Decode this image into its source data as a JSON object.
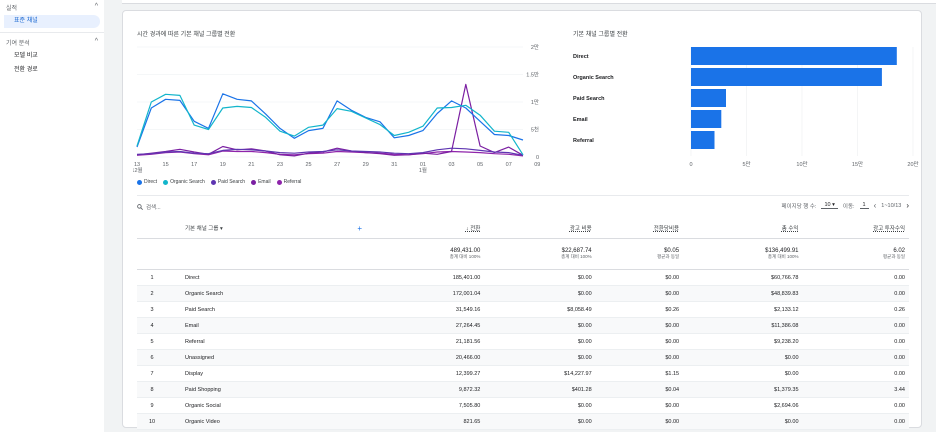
{
  "sidebar": {
    "section1": "실적",
    "section1_item": "표준 채널",
    "section2": "기여 분석",
    "section2_items": [
      "모델 비교",
      "전환 경로"
    ],
    "chevron": "^"
  },
  "line_chart": {
    "title": "시간 경과에 따른 기본 채널 그룹별 전환",
    "y_ticks": [
      "2만",
      "1.5만",
      "1만",
      "5천",
      "0"
    ],
    "x_ticks": [
      "13",
      "15",
      "17",
      "19",
      "21",
      "23",
      "25",
      "27",
      "29",
      "31",
      "01",
      "03",
      "05",
      "07",
      "09"
    ],
    "x_month_first": "12월",
    "x_month_second": "1월"
  },
  "bar_chart": {
    "title": "기본 채널 그룹별 전환"
  },
  "legend": [
    {
      "name": "Direct",
      "color": "#1a73e8"
    },
    {
      "name": "Organic Search",
      "color": "#12b5cb"
    },
    {
      "name": "Paid Search",
      "color": "#5e35b1"
    },
    {
      "name": "Email",
      "color": "#7b1fa2"
    },
    {
      "name": "Referral",
      "color": "#8e24aa"
    }
  ],
  "toolbar": {
    "search_placeholder": "검색...",
    "rows_per_page_label": "페이지당 행 수:",
    "rows_per_page_value": "10",
    "goto_label": "이동:",
    "goto_value": "1",
    "range": "1~10/13"
  },
  "table": {
    "columns": {
      "dimension": "기본 채널 그룹",
      "conversions": "↓ 전환",
      "ad_cost": "광고 비용",
      "cost_per_conv": "전환당비용",
      "revenue": "총 수익",
      "roas": "광고 투자수익"
    },
    "totals": {
      "conversions": "489,431.00",
      "conversions_sub": "총계 대비 100%",
      "ad_cost": "$22,687.74",
      "ad_cost_sub": "총계 대비 100%",
      "cost_per_conv": "$0.05",
      "cost_per_conv_sub": "평균과 동일",
      "revenue": "$136,499.91",
      "revenue_sub": "총계 대비 100%",
      "roas": "6.02",
      "roas_sub": "평균과 동일"
    },
    "rows": [
      {
        "idx": "1",
        "name": "Direct",
        "conv": "185,401.00",
        "cost": "$0.00",
        "cpc": "$0.00",
        "rev": "$60,766.78",
        "roas": "0.00"
      },
      {
        "idx": "2",
        "name": "Organic Search",
        "conv": "172,001.04",
        "cost": "$0.00",
        "cpc": "$0.00",
        "rev": "$48,839.83",
        "roas": "0.00"
      },
      {
        "idx": "3",
        "name": "Paid Search",
        "conv": "31,549.16",
        "cost": "$8,058.49",
        "cpc": "$0.26",
        "rev": "$2,133.12",
        "roas": "0.26"
      },
      {
        "idx": "4",
        "name": "Email",
        "conv": "27,264.45",
        "cost": "$0.00",
        "cpc": "$0.00",
        "rev": "$11,386.08",
        "roas": "0.00"
      },
      {
        "idx": "5",
        "name": "Referral",
        "conv": "21,181.56",
        "cost": "$0.00",
        "cpc": "$0.00",
        "rev": "$9,238.20",
        "roas": "0.00"
      },
      {
        "idx": "6",
        "name": "Unassigned",
        "conv": "20,466.00",
        "cost": "$0.00",
        "cpc": "$0.00",
        "rev": "$0.00",
        "roas": "0.00"
      },
      {
        "idx": "7",
        "name": "Display",
        "conv": "12,399.27",
        "cost": "$14,227.97",
        "cpc": "$1.15",
        "rev": "$0.00",
        "roas": "0.00"
      },
      {
        "idx": "8",
        "name": "Paid Shopping",
        "conv": "9,872.32",
        "cost": "$401.28",
        "cpc": "$0.04",
        "rev": "$1,379.35",
        "roas": "3.44"
      },
      {
        "idx": "9",
        "name": "Organic Social",
        "conv": "7,505.80",
        "cost": "$0.00",
        "cpc": "$0.00",
        "rev": "$2,694.06",
        "roas": "0.00"
      },
      {
        "idx": "10",
        "name": "Organic Video",
        "conv": "821.65",
        "cost": "$0.00",
        "cpc": "$0.00",
        "rev": "$0.00",
        "roas": "0.00"
      }
    ]
  },
  "chart_data": [
    {
      "type": "line",
      "title": "시간 경과에 따른 기본 채널 그룹별 전환",
      "x": [
        "12-13",
        "12-14",
        "12-15",
        "12-16",
        "12-17",
        "12-18",
        "12-19",
        "12-20",
        "12-21",
        "12-22",
        "12-23",
        "12-24",
        "12-25",
        "12-26",
        "12-27",
        "12-28",
        "12-29",
        "12-30",
        "12-31",
        "01-01",
        "01-02",
        "01-03",
        "01-04",
        "01-05",
        "01-06",
        "01-07",
        "01-08",
        "01-09"
      ],
      "ylim": [
        0,
        20000
      ],
      "series": [
        {
          "name": "Direct",
          "values": [
            1800,
            8900,
            10500,
            10300,
            6500,
            5200,
            11500,
            10500,
            10200,
            7800,
            5200,
            3400,
            4800,
            5200,
            10200,
            8500,
            7200,
            6400,
            3500,
            3900,
            4800,
            7900,
            10200,
            8900,
            6500,
            4100,
            3900,
            3100
          ]
        },
        {
          "name": "Organic Search",
          "values": [
            2000,
            10000,
            11400,
            11200,
            5800,
            5000,
            8900,
            9200,
            9000,
            7200,
            4700,
            3800,
            5400,
            5800,
            8800,
            8300,
            7100,
            5900,
            3900,
            4500,
            5600,
            8900,
            9000,
            9400,
            7600,
            4700,
            4500,
            400
          ]
        },
        {
          "name": "Paid Search",
          "values": [
            500,
            600,
            900,
            1000,
            700,
            600,
            1200,
            1400,
            1300,
            1100,
            800,
            700,
            900,
            1000,
            1300,
            1100,
            1000,
            900,
            700,
            600,
            800,
            1300,
            1600,
            1500,
            1200,
            900,
            800,
            300
          ]
        },
        {
          "name": "Email",
          "values": [
            400,
            700,
            1000,
            1400,
            900,
            500,
            1900,
            1300,
            1500,
            1100,
            400,
            200,
            700,
            900,
            1600,
            1100,
            800,
            600,
            300,
            400,
            700,
            500,
            1000,
            13200,
            2000,
            800,
            1800,
            300
          ]
        },
        {
          "name": "Referral",
          "values": [
            300,
            500,
            800,
            900,
            600,
            400,
            1100,
            1000,
            1000,
            800,
            500,
            400,
            600,
            700,
            1000,
            900,
            800,
            700,
            500,
            400,
            600,
            900,
            1000,
            900,
            800,
            600,
            500,
            200
          ]
        }
      ]
    },
    {
      "type": "bar",
      "title": "기본 채널 그룹별 전환",
      "categories": [
        "Direct",
        "Organic Search",
        "Paid Search",
        "Email",
        "Referral"
      ],
      "values": [
        185401.0,
        172001.04,
        31549.16,
        27264.45,
        21181.56
      ],
      "x_ticks": [
        "0",
        "5만",
        "10만",
        "15만",
        "20만"
      ],
      "xlim": [
        0,
        200000
      ],
      "color": "#1a73e8"
    }
  ]
}
